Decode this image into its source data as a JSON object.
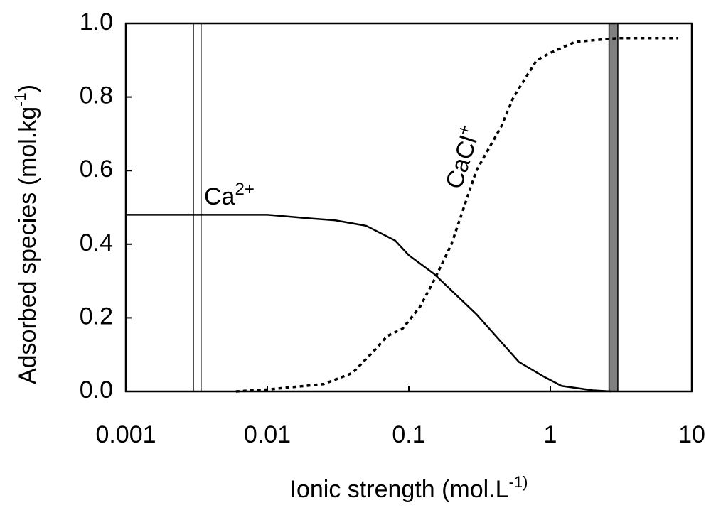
{
  "chart_data": {
    "type": "line",
    "xlabel": {
      "text": "Ionic strength (mol.L",
      "sup": "-1)"
    },
    "ylabel": {
      "text": "Adsorbed species (mol.kg",
      "sup": "-1",
      "tail": ")"
    },
    "xscale": "log",
    "xlim": [
      0.001,
      10
    ],
    "xticks": [
      0.001,
      0.01,
      0.1,
      1,
      10
    ],
    "ylim": [
      0,
      1
    ],
    "yticks": [
      {
        "value": 0,
        "label": "0.0"
      },
      {
        "value": 0.2,
        "label": "0.2"
      },
      {
        "value": 0.4,
        "label": "0.4"
      },
      {
        "value": 0.6,
        "label": "0.6"
      },
      {
        "value": 0.8,
        "label": "0.8"
      },
      {
        "value": 1,
        "label": "1.0"
      }
    ],
    "series": [
      {
        "name": "Ca",
        "sup": "2+",
        "color": "#000000",
        "dash": "solid",
        "x": [
          0.001,
          0.01,
          0.02,
          0.03,
          0.05,
          0.08,
          0.1,
          0.15,
          0.3,
          0.6,
          0.9,
          1.2,
          2,
          2.7
        ],
        "values": [
          0.48,
          0.48,
          0.47,
          0.465,
          0.45,
          0.41,
          0.37,
          0.32,
          0.21,
          0.08,
          0.04,
          0.015,
          0.003,
          0
        ]
      },
      {
        "name": "CaCl",
        "sup": "+",
        "color": "#000000",
        "dash": "dotted",
        "x": [
          0.006,
          0.01,
          0.025,
          0.04,
          0.06,
          0.07,
          0.09,
          0.12,
          0.15,
          0.2,
          0.3,
          0.45,
          0.55,
          0.8,
          1,
          1.5,
          3,
          8
        ],
        "values": [
          0,
          0.005,
          0.02,
          0.05,
          0.12,
          0.15,
          0.17,
          0.23,
          0.3,
          0.4,
          0.6,
          0.72,
          0.8,
          0.9,
          0.92,
          0.95,
          0.96,
          0.96
        ]
      }
    ],
    "bands": [
      {
        "x": [
          0.003,
          0.0034
        ],
        "color": "#ffffff"
      },
      {
        "x": [
          2.6,
          3.0
        ],
        "color": "#808080"
      }
    ]
  }
}
